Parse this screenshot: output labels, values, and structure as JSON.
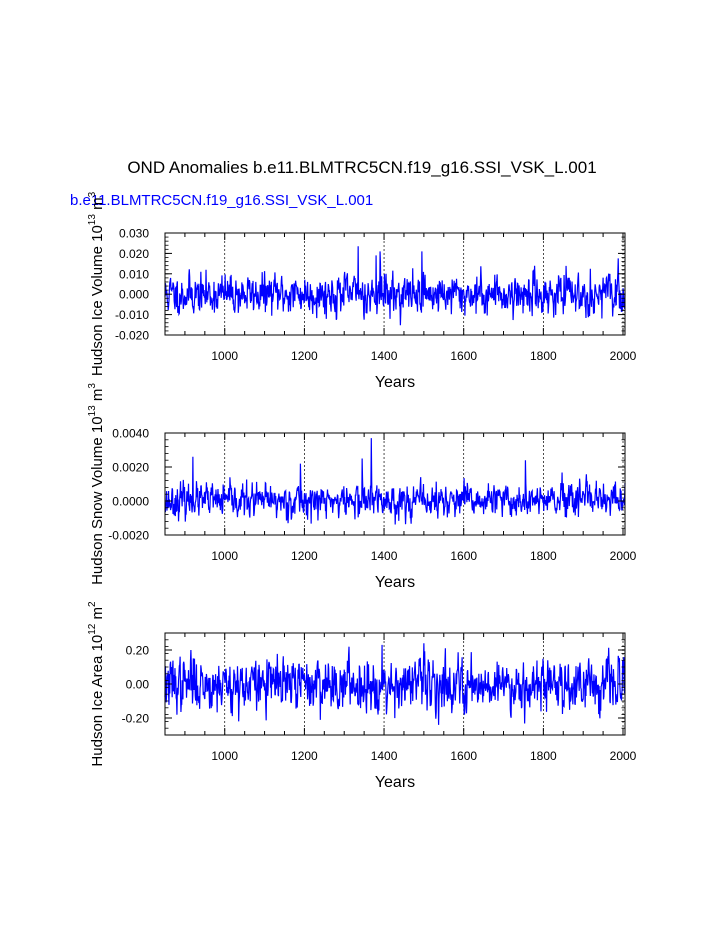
{
  "figure": {
    "title": "OND Anomalies b.e11.BLMTRC5CN.f19_g16.SSI_VSK_L.001",
    "legend_label": "b.e11.BLMTRC5CN.f19_g16.SSI_VSK_L.001",
    "series_color": "#0000ff"
  },
  "chart_data": [
    {
      "type": "line",
      "ylabel": "Hudson Ice Volume 10",
      "ylabel_sup1": "13",
      "ylabel_mid": " m",
      "ylabel_sup2": "3",
      "xlabel": "Years",
      "xlim": [
        850,
        2005
      ],
      "ylim": [
        -0.02,
        0.03
      ],
      "xticks": [
        1000,
        1200,
        1400,
        1600,
        1800,
        2000
      ],
      "xtick_labels": [
        "1000",
        "1200",
        "1400",
        "1600",
        "1800",
        "2000"
      ],
      "yticks": [
        -0.02,
        -0.01,
        0.0,
        0.01,
        0.02,
        0.03
      ],
      "ytick_labels": [
        "-0.020",
        "-0.010",
        "0.000",
        "0.010",
        "0.020",
        "0.030"
      ],
      "grid": "vertical dashed at major x ticks",
      "series": [
        {
          "color": "#0000ff",
          "sd": 0.0045,
          "spikes": [
            [
              1335,
              0.0235
            ],
            [
              1390,
              0.021
            ],
            [
              1495,
              0.021
            ],
            [
              1380,
              0.019
            ]
          ],
          "seed": 11
        }
      ]
    },
    {
      "type": "line",
      "ylabel": "Hudson Snow Volume 10",
      "ylabel_sup1": "13",
      "ylabel_mid": " m",
      "ylabel_sup2": "3",
      "xlabel": "Years",
      "xlim": [
        850,
        2005
      ],
      "ylim": [
        -0.002,
        0.004
      ],
      "xticks": [
        1000,
        1200,
        1400,
        1600,
        1800,
        2000
      ],
      "xtick_labels": [
        "1000",
        "1200",
        "1400",
        "1600",
        "1800",
        "2000"
      ],
      "yticks": [
        -0.002,
        0.0,
        0.002,
        0.004
      ],
      "ytick_labels": [
        "-0.0020",
        "0.0000",
        "0.0020",
        "0.0040"
      ],
      "grid": "vertical dashed at major x ticks",
      "series": [
        {
          "color": "#0000ff",
          "sd": 0.00045,
          "spikes": [
            [
              1368,
              0.0037
            ],
            [
              1345,
              0.0025
            ],
            [
              1755,
              0.0024
            ],
            [
              920,
              0.0026
            ],
            [
              1190,
              0.0022
            ]
          ],
          "seed": 23
        }
      ]
    },
    {
      "type": "line",
      "ylabel": "Hudson Ice Area 10",
      "ylabel_sup1": "12",
      "ylabel_mid": " m",
      "ylabel_sup2": "2",
      "xlabel": "Years",
      "xlim": [
        850,
        2005
      ],
      "ylim": [
        -0.3,
        0.3
      ],
      "xticks": [
        1000,
        1200,
        1400,
        1600,
        1800,
        2000
      ],
      "xtick_labels": [
        "1000",
        "1200",
        "1400",
        "1600",
        "1800",
        "2000"
      ],
      "yticks": [
        -0.2,
        0.0,
        0.2
      ],
      "ytick_labels": [
        "-0.20",
        "0.00",
        "0.20"
      ],
      "grid": "vertical dashed at major x ticks",
      "series": [
        {
          "color": "#0000ff",
          "sd": 0.07,
          "spikes": [
            [
              1500,
              0.24
            ],
            [
              1395,
              0.23
            ],
            [
              1035,
              -0.22
            ],
            [
              1385,
              -0.18
            ],
            [
              915,
              0.2
            ]
          ],
          "seed": 37
        }
      ]
    }
  ]
}
